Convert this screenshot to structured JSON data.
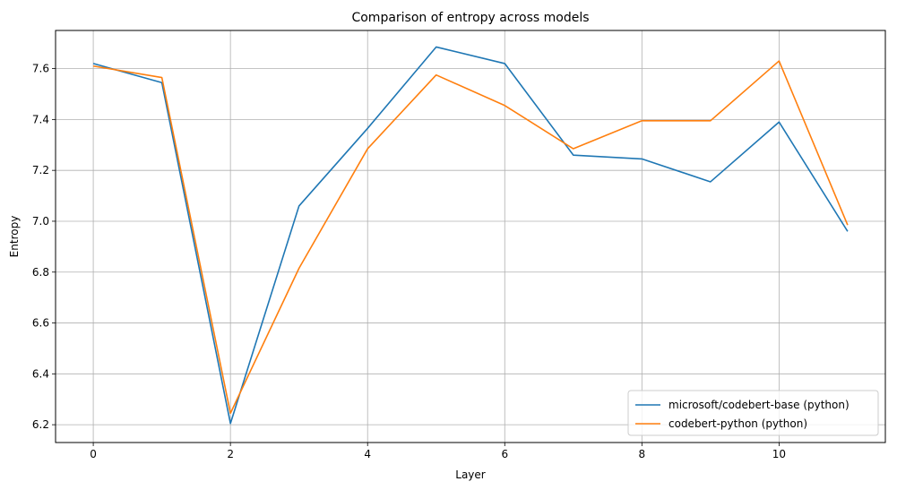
{
  "chart_data": {
    "type": "line",
    "title": "Comparison of entropy across models",
    "xlabel": "Layer",
    "ylabel": "Entropy",
    "xlim": [
      -0.55,
      11.55
    ],
    "ylim": [
      6.13,
      7.75
    ],
    "xticks": [
      0,
      2,
      4,
      6,
      8,
      10
    ],
    "yticks": [
      6.2,
      6.4,
      6.6,
      6.8,
      7.0,
      7.2,
      7.4,
      7.6
    ],
    "xtick_labels": [
      "0",
      "2",
      "4",
      "6",
      "8",
      "10"
    ],
    "ytick_labels": [
      "6.2",
      "6.4",
      "6.6",
      "6.8",
      "7.0",
      "7.2",
      "7.4",
      "7.6"
    ],
    "grid": true,
    "legend_position": "lower-right",
    "x": [
      0,
      1,
      2,
      3,
      4,
      5,
      6,
      7,
      8,
      9,
      10,
      11
    ],
    "series": [
      {
        "name": "microsoft/codebert-base (python)",
        "color": "#1f77b4",
        "values": [
          7.62,
          7.545,
          6.205,
          7.06,
          7.365,
          7.685,
          7.62,
          7.26,
          7.245,
          7.155,
          7.39,
          6.96
        ]
      },
      {
        "name": "codebert-python (python)",
        "color": "#ff7f0e",
        "values": [
          7.61,
          7.565,
          6.245,
          6.815,
          7.285,
          7.575,
          7.455,
          7.285,
          7.395,
          7.395,
          7.63,
          6.985
        ]
      }
    ]
  }
}
